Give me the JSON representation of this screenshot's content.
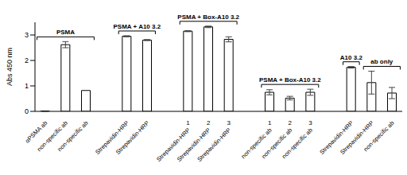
{
  "chart_data": {
    "type": "bar",
    "y_label": "Abs 450 nm",
    "categories": [
      "αPSMA ab",
      "non-specific ab",
      "non-specific ab",
      null,
      "Strepavidin-HRP",
      "Strepavidin-HRP",
      null,
      "Strepavidin-HRP",
      "Strepavidin-HRP",
      "Strepavidin-HRP",
      null,
      "non-specific ab",
      "non-specific ab",
      "non-specific ab",
      null,
      "Strepavidin-HRP",
      "Strepavidin-HRP",
      "non-specific ab"
    ],
    "values": [
      0.01,
      2.62,
      0.82,
      null,
      2.95,
      2.8,
      null,
      3.15,
      3.32,
      2.83,
      null,
      0.75,
      0.52,
      0.75,
      null,
      1.73,
      1.13,
      0.72
    ],
    "errors": [
      0.01,
      0.12,
      null,
      null,
      0.02,
      0.02,
      null,
      0.02,
      0.03,
      0.1,
      null,
      0.1,
      0.07,
      0.12,
      null,
      0.03,
      0.45,
      0.22
    ],
    "groups": [
      "PSMA",
      "PSMA",
      "PSMA",
      null,
      "PSMA + A10 3.2",
      "PSMA + A10 3.2",
      null,
      "PSMA + Box-A10 3.2",
      "PSMA + Box-A10 3.2",
      "PSMA + Box-A10 3.2",
      null,
      "PSMA + Box-A10 3.2",
      "PSMA + Box-A10 3.2",
      "PSMA + Box-A10 3.2",
      null,
      "A10 3.2",
      "ab only",
      "ab only"
    ],
    "bar_numbers": [
      null,
      null,
      null,
      null,
      null,
      null,
      null,
      1,
      2,
      3,
      null,
      1,
      2,
      3,
      null,
      null,
      null,
      null
    ],
    "color": "#ffffff",
    "ylim": [
      0,
      3.5
    ],
    "yticks": [
      0,
      1,
      2,
      3
    ]
  }
}
